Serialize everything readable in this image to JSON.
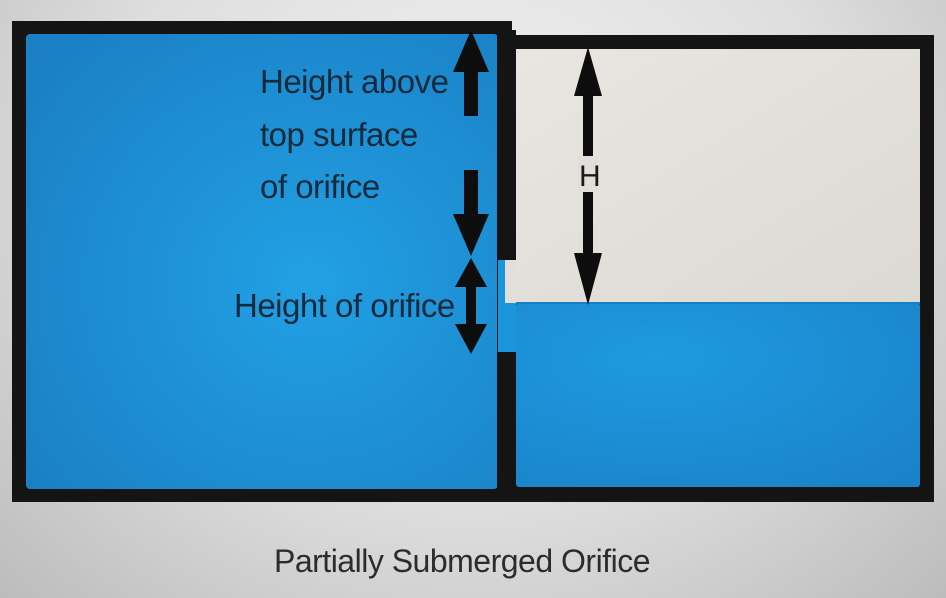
{
  "labels": {
    "height_above_line1": "Height above",
    "height_above_line2": "top surface",
    "height_above_line3": "of orifice",
    "height_of_orifice": "Height of orifice",
    "head": "H"
  },
  "caption": "Partially Submerged Orifice",
  "colors": {
    "water": "#1b8fd4",
    "wall": "#141414",
    "air": "#e2dfda",
    "arrow": "#0d0d0d"
  }
}
